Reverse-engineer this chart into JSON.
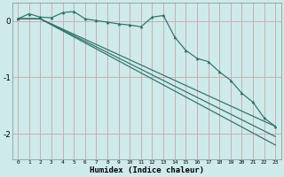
{
  "xlabel": "Humidex (Indice chaleur)",
  "bg_color": "#ceeaea",
  "grid_color": "#c8a8a8",
  "line_color": "#2d7068",
  "xlim": [
    -0.5,
    23.5
  ],
  "ylim": [
    -2.45,
    0.32
  ],
  "yticks": [
    0,
    -1,
    -2
  ],
  "ytick_labels": [
    "0",
    "-1",
    "-2"
  ],
  "xticks": [
    0,
    1,
    2,
    3,
    4,
    5,
    6,
    7,
    8,
    9,
    10,
    11,
    12,
    13,
    14,
    15,
    16,
    17,
    18,
    19,
    20,
    21,
    22,
    23
  ],
  "line1_x": [
    0,
    1,
    2,
    3,
    4,
    5,
    6,
    7,
    8,
    9,
    10,
    11,
    12,
    13,
    14,
    15,
    16,
    17,
    18,
    19,
    20,
    21,
    22,
    23
  ],
  "line1_y": [
    0.04,
    0.13,
    0.07,
    0.06,
    0.15,
    0.17,
    0.04,
    0.01,
    -0.02,
    -0.05,
    -0.07,
    -0.1,
    0.07,
    0.1,
    -0.28,
    -0.52,
    -0.66,
    -0.72,
    -0.9,
    -1.05,
    -1.28,
    -1.44,
    -1.72,
    -1.87
  ],
  "line2_x": [
    0,
    2,
    23
  ],
  "line2_y": [
    0.04,
    0.04,
    -1.87
  ],
  "line3_x": [
    0,
    2,
    23
  ],
  "line3_y": [
    0.04,
    0.04,
    -2.05
  ],
  "line4_x": [
    0,
    2,
    23
  ],
  "line4_y": [
    0.04,
    0.04,
    -2.2
  ]
}
